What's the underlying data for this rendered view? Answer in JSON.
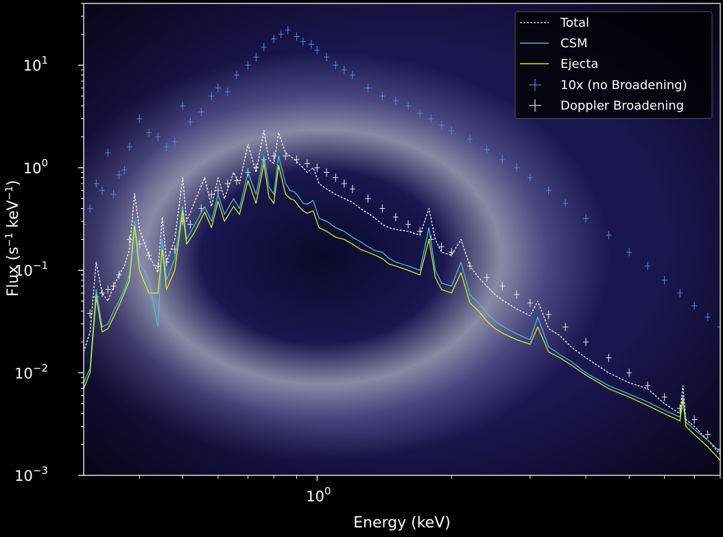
{
  "chart_data": {
    "type": "line",
    "title": "",
    "xlabel": "Energy (keV)",
    "ylabel_main": "Flux (s",
    "ylabel_sup1": "−1",
    "ylabel_mid": " keV",
    "ylabel_sup2": "−1",
    "ylabel_end": ")",
    "x_scale": "log",
    "y_scale": "log",
    "xlim": [
      0.3,
      8.0
    ],
    "ylim": [
      0.001,
      40
    ],
    "grid": false,
    "legend_position": "top-right",
    "x_ticks": [
      {
        "base": "10",
        "exp": "0",
        "value": 1.0
      }
    ],
    "y_ticks": [
      {
        "base": "10",
        "exp": "1",
        "value": 10
      },
      {
        "base": "10",
        "exp": "0",
        "value": 1
      },
      {
        "base": "10",
        "exp": "−1",
        "value": 0.1
      },
      {
        "base": "10",
        "exp": "−2",
        "value": 0.01
      },
      {
        "base": "10",
        "exp": "−3",
        "value": 0.001
      }
    ],
    "series": [
      {
        "name": "Total",
        "style": "dashed",
        "color": "#ffffff",
        "x": [
          0.3,
          0.31,
          0.32,
          0.33,
          0.34,
          0.35,
          0.36,
          0.37,
          0.38,
          0.39,
          0.4,
          0.42,
          0.44,
          0.45,
          0.46,
          0.48,
          0.5,
          0.51,
          0.53,
          0.56,
          0.58,
          0.6,
          0.62,
          0.65,
          0.67,
          0.7,
          0.73,
          0.76,
          0.78,
          0.8,
          0.82,
          0.85,
          0.87,
          0.89,
          0.91,
          0.93,
          0.95,
          0.98,
          1.01,
          1.05,
          1.1,
          1.15,
          1.2,
          1.25,
          1.3,
          1.35,
          1.4,
          1.45,
          1.5,
          1.6,
          1.7,
          1.78,
          1.84,
          1.9,
          2.0,
          2.1,
          2.2,
          2.3,
          2.4,
          2.5,
          2.62,
          2.8,
          3.0,
          3.12,
          3.3,
          3.5,
          3.7,
          4.0,
          4.5,
          5.0,
          5.5,
          6.0,
          6.5,
          6.6,
          6.7,
          7.0,
          7.5,
          8.0
        ],
        "y": [
          0.016,
          0.025,
          0.12,
          0.06,
          0.05,
          0.07,
          0.09,
          0.11,
          0.16,
          0.56,
          0.25,
          0.14,
          0.095,
          0.33,
          0.12,
          0.2,
          0.8,
          0.3,
          0.45,
          0.8,
          0.42,
          0.8,
          0.5,
          0.9,
          0.7,
          1.7,
          0.9,
          2.3,
          1.2,
          1.1,
          2.2,
          1.4,
          1.3,
          1.2,
          1.1,
          1.0,
          0.9,
          1.0,
          0.7,
          0.62,
          0.55,
          0.5,
          0.46,
          0.4,
          0.36,
          0.32,
          0.28,
          0.26,
          0.25,
          0.24,
          0.22,
          0.4,
          0.2,
          0.15,
          0.14,
          0.2,
          0.11,
          0.085,
          0.07,
          0.058,
          0.05,
          0.042,
          0.036,
          0.05,
          0.027,
          0.023,
          0.018,
          0.014,
          0.01,
          0.008,
          0.007,
          0.005,
          0.004,
          0.0075,
          0.0035,
          0.003,
          0.0022,
          0.0016
        ]
      },
      {
        "name": "CSM",
        "style": "solid",
        "color": "#40c4d8",
        "x": [
          0.3,
          0.31,
          0.32,
          0.33,
          0.34,
          0.35,
          0.36,
          0.37,
          0.38,
          0.39,
          0.4,
          0.42,
          0.44,
          0.45,
          0.46,
          0.48,
          0.5,
          0.51,
          0.53,
          0.56,
          0.58,
          0.6,
          0.62,
          0.65,
          0.67,
          0.7,
          0.73,
          0.76,
          0.78,
          0.8,
          0.82,
          0.85,
          0.87,
          0.89,
          0.91,
          0.93,
          0.95,
          0.98,
          1.01,
          1.05,
          1.1,
          1.15,
          1.2,
          1.25,
          1.3,
          1.35,
          1.4,
          1.45,
          1.5,
          1.6,
          1.7,
          1.78,
          1.84,
          1.9,
          2.0,
          2.1,
          2.2,
          2.3,
          2.4,
          2.5,
          2.62,
          2.8,
          3.0,
          3.12,
          3.3,
          3.5,
          3.7,
          4.0,
          4.5,
          5.0,
          5.5,
          6.0,
          6.5,
          6.6,
          6.7,
          7.0,
          7.5,
          8.0
        ],
        "y": [
          0.008,
          0.011,
          0.065,
          0.028,
          0.03,
          0.04,
          0.05,
          0.065,
          0.09,
          0.3,
          0.12,
          0.08,
          0.028,
          0.2,
          0.08,
          0.13,
          0.42,
          0.2,
          0.27,
          0.42,
          0.3,
          0.55,
          0.35,
          0.5,
          0.4,
          0.9,
          0.55,
          1.3,
          0.65,
          0.55,
          1.3,
          0.7,
          0.6,
          0.58,
          0.52,
          0.45,
          0.44,
          0.48,
          0.32,
          0.3,
          0.26,
          0.24,
          0.21,
          0.19,
          0.17,
          0.155,
          0.15,
          0.13,
          0.12,
          0.11,
          0.1,
          0.26,
          0.1,
          0.075,
          0.07,
          0.12,
          0.058,
          0.048,
          0.038,
          0.032,
          0.028,
          0.024,
          0.021,
          0.035,
          0.018,
          0.015,
          0.013,
          0.01,
          0.0075,
          0.0062,
          0.0052,
          0.0043,
          0.0037,
          0.006,
          0.0033,
          0.0028,
          0.0022,
          0.0017
        ]
      },
      {
        "name": "Ejecta",
        "style": "solid",
        "color": "#d8f020",
        "x": [
          0.3,
          0.31,
          0.32,
          0.33,
          0.34,
          0.35,
          0.36,
          0.37,
          0.38,
          0.39,
          0.4,
          0.42,
          0.44,
          0.45,
          0.46,
          0.48,
          0.5,
          0.51,
          0.53,
          0.56,
          0.58,
          0.6,
          0.62,
          0.65,
          0.67,
          0.7,
          0.73,
          0.76,
          0.78,
          0.8,
          0.82,
          0.85,
          0.87,
          0.89,
          0.91,
          0.93,
          0.95,
          0.98,
          1.01,
          1.05,
          1.1,
          1.15,
          1.2,
          1.25,
          1.3,
          1.35,
          1.4,
          1.45,
          1.5,
          1.6,
          1.7,
          1.78,
          1.84,
          1.9,
          2.0,
          2.1,
          2.2,
          2.3,
          2.4,
          2.5,
          2.62,
          2.8,
          3.0,
          3.12,
          3.3,
          3.5,
          3.7,
          4.0,
          4.5,
          5.0,
          5.5,
          6.0,
          6.5,
          6.6,
          6.7,
          7.0,
          7.5,
          8.0
        ],
        "y": [
          0.007,
          0.01,
          0.055,
          0.025,
          0.027,
          0.035,
          0.045,
          0.06,
          0.08,
          0.27,
          0.1,
          0.06,
          0.06,
          0.16,
          0.065,
          0.1,
          0.38,
          0.18,
          0.23,
          0.37,
          0.26,
          0.47,
          0.3,
          0.42,
          0.35,
          0.75,
          0.45,
          1.1,
          0.52,
          0.45,
          1.05,
          0.55,
          0.5,
          0.48,
          0.42,
          0.38,
          0.36,
          0.38,
          0.26,
          0.24,
          0.21,
          0.2,
          0.18,
          0.16,
          0.15,
          0.14,
          0.13,
          0.115,
          0.11,
          0.1,
          0.09,
          0.2,
          0.085,
          0.065,
          0.06,
          0.095,
          0.048,
          0.04,
          0.032,
          0.027,
          0.024,
          0.021,
          0.019,
          0.028,
          0.016,
          0.014,
          0.012,
          0.0095,
          0.007,
          0.0058,
          0.0048,
          0.004,
          0.0034,
          0.0055,
          0.003,
          0.0025,
          0.0019,
          0.0014
        ]
      },
      {
        "name": "10x (no Broadening)",
        "style": "errorbar",
        "color": "#4a86e0",
        "x": [
          0.3,
          0.31,
          0.32,
          0.33,
          0.34,
          0.35,
          0.36,
          0.37,
          0.38,
          0.4,
          0.42,
          0.44,
          0.46,
          0.48,
          0.5,
          0.52,
          0.55,
          0.58,
          0.6,
          0.63,
          0.66,
          0.7,
          0.73,
          0.76,
          0.8,
          0.83,
          0.86,
          0.9,
          0.93,
          0.97,
          1.0,
          1.05,
          1.1,
          1.15,
          1.2,
          1.3,
          1.4,
          1.5,
          1.6,
          1.7,
          1.8,
          1.9,
          2.0,
          2.2,
          2.4,
          2.6,
          2.8,
          3.0,
          3.3,
          3.6,
          4.0,
          4.5,
          5.0,
          5.5,
          6.0,
          6.5,
          7.0,
          7.5,
          8.0
        ],
        "y": [
          0.28,
          0.4,
          0.7,
          0.6,
          1.4,
          0.55,
          0.85,
          0.95,
          1.6,
          3.0,
          2.2,
          2.0,
          1.6,
          1.8,
          4.0,
          2.8,
          3.5,
          5.0,
          6.0,
          5.5,
          8.0,
          10.0,
          12.0,
          15.0,
          18.0,
          20.0,
          22.0,
          19.0,
          17.0,
          16.0,
          14.0,
          12.0,
          10.0,
          9.0,
          8.0,
          6.0,
          5.0,
          4.5,
          4.0,
          3.4,
          3.0,
          2.6,
          2.3,
          1.9,
          1.5,
          1.2,
          1.0,
          0.8,
          0.6,
          0.45,
          0.32,
          0.22,
          0.15,
          0.11,
          0.08,
          0.06,
          0.045,
          0.035,
          0.028
        ]
      },
      {
        "name": "Doppler Broadening",
        "style": "errorbar",
        "color": "#e0e0e0",
        "x": [
          0.31,
          0.32,
          0.33,
          0.34,
          0.35,
          0.36,
          0.38,
          0.4,
          0.42,
          0.44,
          0.46,
          0.48,
          0.5,
          0.52,
          0.55,
          0.58,
          0.6,
          0.63,
          0.66,
          0.7,
          0.73,
          0.76,
          0.8,
          0.85,
          0.9,
          0.95,
          1.0,
          1.05,
          1.1,
          1.15,
          1.2,
          1.3,
          1.4,
          1.5,
          1.6,
          1.7,
          1.8,
          1.9,
          2.0,
          2.2,
          2.4,
          2.6,
          2.8,
          3.0,
          3.3,
          3.6,
          4.0,
          4.5,
          5.0,
          5.5,
          6.0,
          6.5,
          7.0,
          7.5,
          8.0
        ],
        "y": [
          0.038,
          0.055,
          0.06,
          0.065,
          0.07,
          0.09,
          0.2,
          0.18,
          0.14,
          0.11,
          0.12,
          0.16,
          0.3,
          0.28,
          0.4,
          0.55,
          0.6,
          0.7,
          0.75,
          0.9,
          1.0,
          1.2,
          1.3,
          1.3,
          1.2,
          1.1,
          1.0,
          0.9,
          0.8,
          0.7,
          0.62,
          0.5,
          0.4,
          0.33,
          0.28,
          0.24,
          0.2,
          0.17,
          0.15,
          0.11,
          0.085,
          0.07,
          0.058,
          0.048,
          0.037,
          0.028,
          0.02,
          0.014,
          0.01,
          0.0075,
          0.0058,
          0.0045,
          0.0035,
          0.0025,
          0.0018
        ]
      }
    ]
  }
}
